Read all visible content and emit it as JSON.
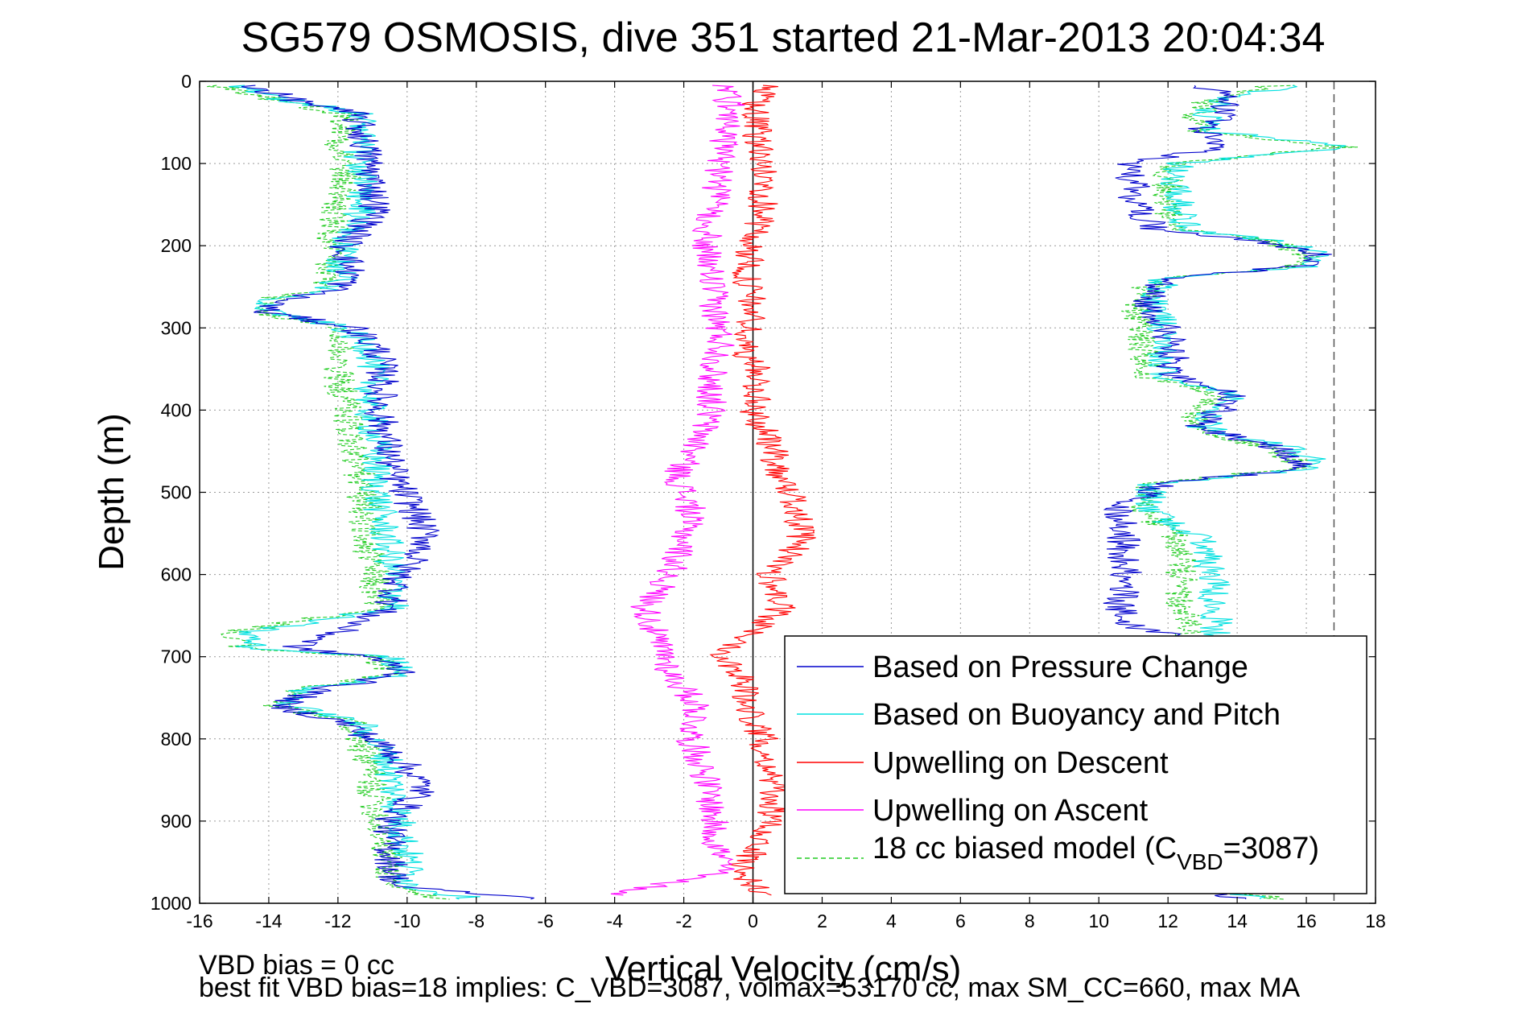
{
  "chart_data": {
    "type": "line",
    "title": "SG579 OSMOSIS, dive 351 started 21-Mar-2013 20:04:34",
    "xlabel": "Vertical Velocity (cm/s)",
    "ylabel": "Depth (m)",
    "xlim": [
      -16,
      18
    ],
    "ylim": [
      0,
      1000
    ],
    "y_reversed": true,
    "grid": true,
    "x_ticks": [
      "-16",
      "-14",
      "-12",
      "-10",
      "-8",
      "-6",
      "-4",
      "-2",
      "0",
      "2",
      "4",
      "6",
      "8",
      "10",
      "12",
      "14",
      "16",
      "18"
    ],
    "y_ticks": [
      "0",
      "100",
      "200",
      "300",
      "400",
      "500",
      "600",
      "700",
      "800",
      "900",
      "1000"
    ],
    "reference_lines": [
      {
        "axis": "x",
        "value": 0,
        "style": "solid",
        "color": "#000000"
      },
      {
        "axis": "x",
        "value": 16.8,
        "style": "dashed",
        "color": "#555555"
      }
    ],
    "legend_position": "bottom-right",
    "series": [
      {
        "name": "Based on Pressure Change",
        "color": "#0000cc",
        "style": "solid",
        "branches": [
          {
            "depth": [
              5,
              20,
              40,
              80,
              120,
              160,
              200,
              240,
              255,
              265,
              280,
              300,
              330,
              360,
              400,
              440,
              480,
              520,
              560,
              600,
              640,
              670,
              690,
              700,
              720,
              740,
              760,
              780,
              820,
              860,
              900,
              940,
              980,
              995
            ],
            "velocity": [
              -14.5,
              -13.5,
              -11.5,
              -11.2,
              -11.0,
              -10.9,
              -11.8,
              -11.6,
              -12.2,
              -13.5,
              -14.2,
              -11.5,
              -10.8,
              -10.7,
              -10.8,
              -10.6,
              -10.4,
              -9.8,
              -9.4,
              -10.2,
              -10.5,
              -12.0,
              -13.3,
              -11.0,
              -10.0,
              -12.5,
              -13.8,
              -11.8,
              -10.3,
              -9.5,
              -10.5,
              -10.5,
              -10.3,
              -6.0
            ]
          },
          {
            "depth": [
              995,
              980,
              940,
              900,
              860,
              820,
              780,
              750,
              720,
              700,
              680,
              660,
              640,
              600,
              560,
              520,
              490,
              470,
              450,
              420,
              400,
              380,
              360,
              330,
              300,
              270,
              240,
              225,
              210,
              195,
              180,
              150,
              120,
              100,
              80,
              60,
              40,
              20,
              5
            ],
            "velocity": [
              14.0,
              13.0,
              12.5,
              12.2,
              12.3,
              12.4,
              12.5,
              12.6,
              12.8,
              12.8,
              12.7,
              10.7,
              10.6,
              10.8,
              10.7,
              10.6,
              11.8,
              16.0,
              15.5,
              12.8,
              13.5,
              13.8,
              12.2,
              12.1,
              12.0,
              11.4,
              11.8,
              15.8,
              16.3,
              14.5,
              11.6,
              11.0,
              11.0,
              10.8,
              13.5,
              13.0,
              13.5,
              13.8,
              13.0
            ]
          }
        ]
      },
      {
        "name": "Based on Buoyancy and Pitch",
        "color": "#00e0e0",
        "style": "solid",
        "branches": [
          {
            "depth": [
              5,
              20,
              40,
              80,
              120,
              160,
              200,
              240,
              255,
              265,
              280,
              300,
              330,
              360,
              400,
              440,
              480,
              520,
              560,
              600,
              640,
              670,
              690,
              700,
              720,
              740,
              760,
              780,
              820,
              860,
              900,
              940,
              980,
              995
            ],
            "velocity": [
              -14.8,
              -13.8,
              -11.3,
              -11.4,
              -11.3,
              -11.4,
              -11.9,
              -11.9,
              -12.4,
              -13.8,
              -14.0,
              -11.8,
              -11.0,
              -11.0,
              -11.1,
              -10.9,
              -10.9,
              -10.8,
              -10.6,
              -10.4,
              -10.3,
              -14.6,
              -14.5,
              -10.6,
              -9.9,
              -13.0,
              -13.4,
              -11.4,
              -10.6,
              -10.4,
              -10.2,
              -10.0,
              -9.9,
              -8.0
            ]
          },
          {
            "depth": [
              995,
              980,
              940,
              900,
              860,
              820,
              780,
              750,
              720,
              700,
              680,
              660,
              640,
              600,
              560,
              520,
              490,
              470,
              450,
              420,
              400,
              380,
              360,
              330,
              300,
              270,
              240,
              225,
              210,
              195,
              180,
              150,
              120,
              100,
              80,
              60,
              40,
              20,
              5
            ],
            "velocity": [
              15.0,
              13.2,
              13.0,
              13.0,
              13.2,
              13.3,
              13.3,
              13.3,
              13.3,
              13.4,
              13.4,
              13.4,
              13.3,
              13.3,
              13.0,
              11.4,
              11.6,
              16.4,
              15.8,
              13.0,
              13.4,
              13.9,
              12.0,
              11.8,
              11.9,
              11.6,
              11.9,
              16.1,
              16.5,
              15.2,
              12.5,
              12.3,
              12.2,
              12.3,
              17.2,
              13.1,
              13.2,
              13.5,
              15.8
            ]
          }
        ]
      },
      {
        "name": "Upwelling on Descent",
        "color": "#ff0000",
        "style": "solid",
        "branches": [
          {
            "depth": [
              5,
              40,
              80,
              120,
              160,
              200,
              240,
              280,
              320,
              360,
              400,
              440,
              480,
              520,
              560,
              600,
              640,
              680,
              700,
              720,
              760,
              800,
              840,
              880,
              920,
              960,
              990
            ],
            "velocity": [
              0.3,
              0.0,
              0.2,
              0.3,
              0.3,
              -0.1,
              -0.2,
              0.0,
              -0.3,
              0.2,
              0.0,
              0.5,
              0.8,
              1.3,
              1.4,
              0.5,
              0.8,
              -0.3,
              -0.9,
              -0.3,
              -0.2,
              0.3,
              0.5,
              0.6,
              0.3,
              -0.4,
              0.3
            ]
          }
        ]
      },
      {
        "name": "Upwelling on Ascent",
        "color": "#ff00ff",
        "style": "solid",
        "branches": [
          {
            "depth": [
              5,
              40,
              80,
              120,
              160,
              200,
              240,
              280,
              320,
              360,
              400,
              440,
              480,
              520,
              560,
              600,
              640,
              680,
              700,
              720,
              760,
              800,
              840,
              880,
              920,
              960,
              990
            ],
            "velocity": [
              -0.8,
              -0.6,
              -0.9,
              -1.0,
              -1.2,
              -1.4,
              -1.2,
              -1.1,
              -0.9,
              -1.2,
              -1.2,
              -1.6,
              -2.2,
              -1.8,
              -2.0,
              -2.4,
              -3.1,
              -2.8,
              -2.5,
              -2.4,
              -1.6,
              -1.8,
              -1.4,
              -1.2,
              -1.1,
              -0.8,
              -4.0
            ]
          }
        ]
      },
      {
        "name": "18 cc biased model (C_VBD=3087)",
        "color": "#22cc22",
        "style": "dashed",
        "branches": [
          {
            "depth": [
              5,
              20,
              40,
              80,
              120,
              160,
              200,
              240,
              255,
              265,
              280,
              300,
              330,
              360,
              400,
              440,
              480,
              520,
              560,
              600,
              640,
              670,
              690,
              700,
              720,
              740,
              760,
              780,
              820,
              860,
              900,
              940,
              980,
              995
            ],
            "velocity": [
              -15.5,
              -14.0,
              -11.8,
              -11.9,
              -11.8,
              -12.1,
              -12.3,
              -12.3,
              -12.6,
              -14.0,
              -14.5,
              -12.0,
              -11.9,
              -12.0,
              -11.7,
              -11.6,
              -11.4,
              -11.2,
              -11.2,
              -11.0,
              -10.8,
              -15.0,
              -14.8,
              -11.0,
              -10.4,
              -13.2,
              -13.8,
              -11.6,
              -11.2,
              -11.0,
              -10.8,
              -10.6,
              -10.4,
              -9.0
            ]
          },
          {
            "depth": [
              995,
              980,
              940,
              900,
              860,
              820,
              780,
              750,
              720,
              700,
              680,
              660,
              640,
              600,
              560,
              520,
              490,
              470,
              450,
              420,
              400,
              380,
              360,
              330,
              300,
              270,
              240,
              225,
              210,
              195,
              180,
              150,
              120,
              100,
              80,
              60,
              40,
              20,
              5
            ],
            "velocity": [
              15.5,
              12.8,
              12.5,
              12.6,
              12.7,
              12.6,
              12.6,
              12.7,
              12.6,
              12.5,
              12.7,
              12.6,
              12.4,
              12.4,
              12.3,
              11.3,
              11.5,
              16.0,
              15.2,
              12.6,
              13.0,
              13.5,
              11.5,
              11.3,
              11.2,
              11.1,
              11.6,
              15.7,
              16.0,
              15.0,
              12.2,
              12.0,
              12.0,
              12.1,
              17.0,
              12.9,
              12.9,
              13.2,
              15.2
            ]
          }
        ]
      }
    ],
    "legend": {
      "entries": [
        "Based on Pressure Change",
        "Based on Buoyancy and Pitch",
        "Upwelling on Descent",
        "Upwelling on Ascent",
        "18 cc biased model (C"
      ],
      "last_sub": "VBD",
      "last_tail": "=3087)"
    },
    "annotations": [
      "VBD bias = 0 cc",
      "best fit VBD bias=18 implies: C_VBD=3087, volmax=53170 cc, max SM_CC=660, max MA"
    ]
  }
}
